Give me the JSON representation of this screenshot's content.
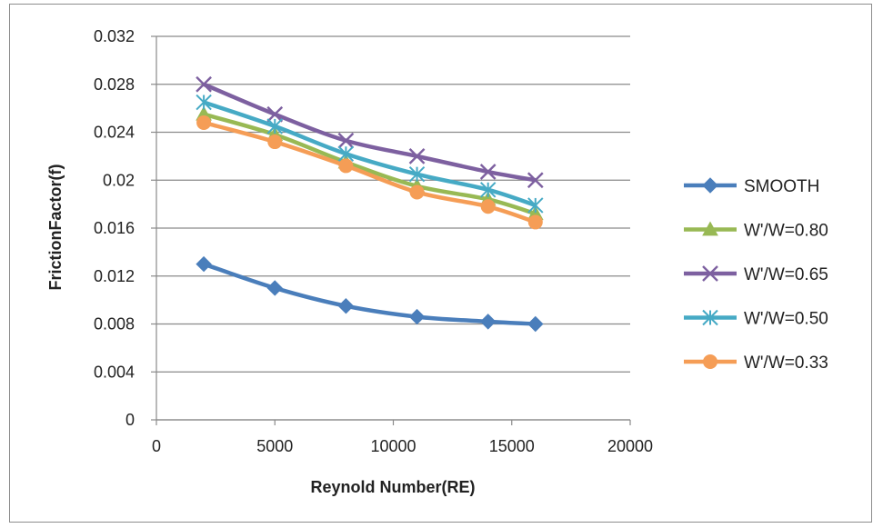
{
  "chart_data": {
    "type": "line",
    "xlabel": "Reynold Number(RE)",
    "ylabel": "FrictionFactor(f)",
    "xlim": [
      0,
      20000
    ],
    "ylim": [
      0,
      0.032
    ],
    "x_ticks": [
      "0",
      "5000",
      "10000",
      "15000",
      "20000"
    ],
    "y_ticks": [
      "0",
      "0.004",
      "0.008",
      "0.012",
      "0.016",
      "0.02",
      "0.024",
      "0.028",
      "0.032"
    ],
    "grid": "horizontal",
    "legend_position": "right",
    "series": [
      {
        "name": "SMOOTH",
        "color": "#4a7ebb",
        "marker": "diamond",
        "x": [
          2000,
          5000,
          8000,
          11000,
          14000,
          16000
        ],
        "y": [
          0.013,
          0.011,
          0.0095,
          0.0086,
          0.0082,
          0.008
        ]
      },
      {
        "name": "W'/W=0.80",
        "color": "#98b954",
        "marker": "triangle",
        "x": [
          2000,
          5000,
          8000,
          11000,
          14000,
          16000
        ],
        "y": [
          0.0255,
          0.0238,
          0.0215,
          0.0195,
          0.0184,
          0.0172
        ]
      },
      {
        "name": "W'/W=0.65",
        "color": "#7d60a0",
        "marker": "x",
        "x": [
          2000,
          5000,
          8000,
          11000,
          14000,
          16000
        ],
        "y": [
          0.028,
          0.0255,
          0.0233,
          0.022,
          0.0207,
          0.02
        ]
      },
      {
        "name": "W'/W=0.50",
        "color": "#46aac5",
        "marker": "asterisk",
        "x": [
          2000,
          5000,
          8000,
          11000,
          14000,
          16000
        ],
        "y": [
          0.0265,
          0.0245,
          0.0222,
          0.0205,
          0.0192,
          0.0179
        ]
      },
      {
        "name": "W'/W=0.33",
        "color": "#f59d56",
        "marker": "circle",
        "x": [
          2000,
          5000,
          8000,
          11000,
          14000,
          16000
        ],
        "y": [
          0.0248,
          0.0232,
          0.0212,
          0.019,
          0.0178,
          0.0165
        ]
      }
    ]
  }
}
